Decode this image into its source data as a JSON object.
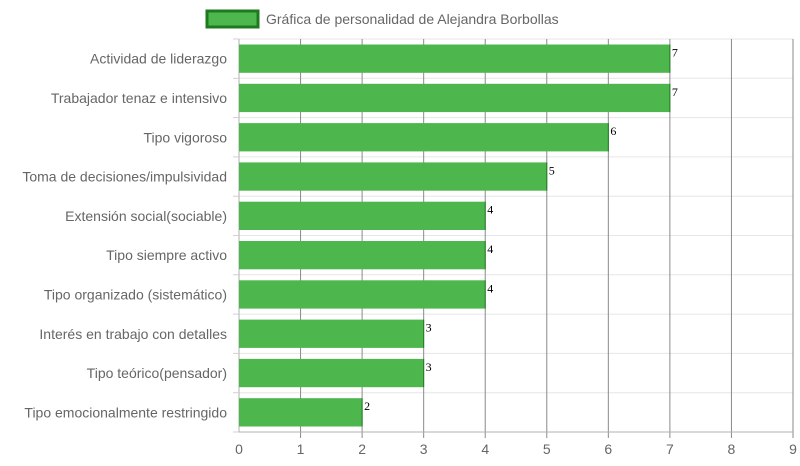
{
  "chart_data": {
    "type": "bar",
    "orientation": "horizontal",
    "title": "",
    "xlabel": "",
    "ylabel": "",
    "xlim": [
      0,
      9
    ],
    "x_ticks": [
      0,
      1,
      2,
      3,
      4,
      5,
      6,
      7,
      8,
      9
    ],
    "grid": true,
    "legend_position": "top",
    "categories": [
      "Actividad de liderazgo",
      "Trabajador tenaz e intensivo",
      "Tipo vigoroso",
      "Toma de decisiones/impulsividad",
      "Extensión social(sociable)",
      "Tipo siempre activo",
      "Tipo organizado (sistemático)",
      "Interés en trabajo con detalles",
      "Tipo teórico(pensador)",
      "Tipo emocionalmente restringido"
    ],
    "series": [
      {
        "name": "Gráfica de personalidad de Alejandra Borbollas",
        "values": [
          7,
          7,
          6,
          5,
          4,
          4,
          4,
          3,
          3,
          2
        ],
        "color": "#4db64d",
        "border_color": "#1e7a1e"
      }
    ],
    "show_data_labels": true
  }
}
